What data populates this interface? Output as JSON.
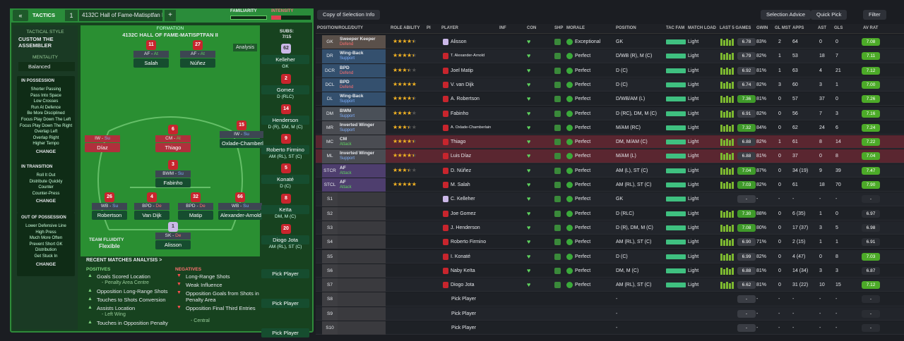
{
  "header": {
    "section": "TACTICS",
    "slot": "1",
    "tactic_name": "4132C Hall of Fame-Matisptfan II",
    "add": "+",
    "familiarity": "FAMILIARITY",
    "intensity": "INTENSITY"
  },
  "toolbar": {
    "view": "Copy of Selection Info",
    "buttons": [
      "Selection Advice",
      "Quick Pick",
      "Filter"
    ]
  },
  "sidebar": {
    "style_label": "TACTICAL STYLE",
    "style": "CUSTOM THE ASSEMBLER",
    "mentality_label": "MENTALITY",
    "mentality": "Balanced",
    "groups": [
      {
        "title": "IN POSSESSION",
        "items": [
          "Shorter Passing",
          "Pass Into Space",
          "Low Crosses",
          "Run At Defence",
          "Be More Disciplined",
          "Focus Play Down The Left",
          "Focus Play Down The Right",
          "Overlap Left",
          "Overlap Right",
          "Higher Tempo"
        ],
        "action": "CHANGE"
      },
      {
        "title": "IN TRANSITION",
        "items": [
          "Roll It Out",
          "Distribute Quickly",
          "Counter",
          "Counter-Press"
        ],
        "action": "CHANGE"
      },
      {
        "title": "OUT OF POSSESSION",
        "items": [
          "Lower Defensive Line",
          "High Press",
          "Much More Often",
          "Prevent Short GK",
          "Distribution",
          "Get Stuck In"
        ],
        "action": "CHANGE"
      }
    ]
  },
  "pitch": {
    "formation_label": "FORMATION",
    "formation": "4132C HALL OF FAME-MATISPTFAN II",
    "analysis": "Analysis",
    "subs_label": "SUBS:",
    "subs_count": "7/15",
    "fluidity_label": "TEAM FLUIDITY",
    "fluidity": "Flexible",
    "players": [
      {
        "number": "11",
        "role": "AF",
        "duty": "At",
        "name": "Salah"
      },
      {
        "number": "27",
        "role": "AF",
        "duty": "At",
        "name": "Núñez"
      },
      {
        "role": "IW",
        "duty": "Su",
        "name": "Díaz",
        "highlight": "#b0303c"
      },
      {
        "number": "6",
        "role": "CM",
        "duty": "At",
        "name": "Thiago",
        "highlight": "#b0303c"
      },
      {
        "number": "15",
        "role": "IW",
        "duty": "Su",
        "name": "Oxlade-Chamberlain"
      },
      {
        "number": "3",
        "role": "BWM",
        "duty": "Su",
        "name": "Fabinho"
      },
      {
        "number": "26",
        "role": "WB",
        "duty": "Su",
        "name": "Robertson"
      },
      {
        "number": "4",
        "role": "BPD",
        "duty": "De",
        "name": "Van Dijk"
      },
      {
        "number": "32",
        "role": "BPD",
        "duty": "De",
        "name": "Matip"
      },
      {
        "number": "66",
        "role": "WB",
        "duty": "Su",
        "name": "Alexander-Arnold"
      },
      {
        "number": "1",
        "role": "SK",
        "duty": "De",
        "name": "Alisson",
        "shirt": "#cbb8e8"
      }
    ],
    "subs": [
      {
        "number": "62",
        "name": "Kelleher",
        "position": "GK",
        "shirt": "#cbb8e8"
      },
      {
        "number": "2",
        "name": "Gomez",
        "position": "D (RLC)"
      },
      {
        "number": "14",
        "name": "Henderson",
        "position": "D (R), DM, M (C)"
      },
      {
        "number": "9",
        "name": "Roberto Firmino",
        "position": "AM (RL), ST (C)"
      },
      {
        "number": "5",
        "name": "Konaté",
        "position": "D (C)"
      },
      {
        "number": "8",
        "name": "Keïta",
        "position": "DM, M (C)"
      },
      {
        "number": "20",
        "name": "Diogo Jota",
        "position": "AM (RL), ST (C)"
      },
      {
        "name": "Pick Player"
      },
      {
        "name": "Pick Player"
      },
      {
        "name": "Pick Player"
      }
    ]
  },
  "analysis": {
    "title": "RECENT MATCHES ANALYSIS >",
    "positives_label": "POSITIVES",
    "positives": [
      {
        "text": "Goals Scored Location",
        "detail": "- Penalty Area Centre"
      },
      {
        "text": "Opposition Long-Range Shots"
      },
      {
        "text": "Touches to Shots Conversion"
      },
      {
        "text": "Assists Location",
        "detail": "- Left Wing"
      },
      {
        "text": "Touches in Opposition Penalty"
      }
    ],
    "negatives_label": "NEGATIVES",
    "negatives": [
      {
        "text": "Long-Range Shots"
      },
      {
        "text": "Weak Influence"
      },
      {
        "text": "Opposition Goals from Shots in Penalty Area"
      },
      {
        "text": "Opposition Final Third Entries",
        "detail": "- Central"
      }
    ]
  },
  "table": {
    "columns": [
      "POSITION/ROLE/DUTY",
      "ROLE ABILITY",
      "PI",
      "PLAYER",
      "INF",
      "CON",
      "SHP",
      "MORALE",
      "POSITION",
      "TAC FAM",
      "MATCH LOAD",
      "LAST 5 GAMES",
      "GWIN",
      "GL MST",
      "APPS",
      "AST",
      "GLS",
      "AV RAT"
    ],
    "rows": [
      {
        "pos": "GK",
        "role": "Sweeper Keeper",
        "duty": "Defend",
        "role_ability": 4,
        "role_color": "#5a504a",
        "player": "Alisson",
        "morale": "Exceptional",
        "position": "GK",
        "match_load": "Light",
        "form": "6.78",
        "gwin": "83%",
        "gl_mst": "2",
        "apps": "64",
        "ast": "0",
        "gls": "0",
        "av_rat": "7.08"
      },
      {
        "pos": "DR",
        "role": "Wing-Back",
        "duty": "Support",
        "role_ability": 4,
        "role_color": "#34506e",
        "player": "T. Alexander-Arnold",
        "morale": "Perfect",
        "position": "D/WB (R), M (C)",
        "match_load": "Light",
        "form": "6.79",
        "gwin": "82%",
        "gl_mst": "1",
        "apps": "53",
        "ast": "18",
        "gls": "7",
        "av_rat": "7.11"
      },
      {
        "pos": "DCR",
        "role": "BPD",
        "duty": "Defend",
        "role_ability": 3,
        "role_color": "#34506e",
        "player": "Joel Matip",
        "morale": "Perfect",
        "position": "D (C)",
        "match_load": "Light",
        "form": "6.92",
        "gwin": "81%",
        "gl_mst": "1",
        "apps": "63",
        "ast": "4",
        "gls": "21",
        "av_rat": "7.12"
      },
      {
        "pos": "DCL",
        "role": "BPD",
        "duty": "Defend",
        "role_ability": 4.5,
        "role_color": "#34506e",
        "player": "V. van Dijk",
        "morale": "Perfect",
        "position": "D (C)",
        "match_load": "Light",
        "form": "6.74",
        "gwin": "82%",
        "gl_mst": "3",
        "apps": "60",
        "ast": "3",
        "gls": "1",
        "av_rat": "7.00"
      },
      {
        "pos": "DL",
        "role": "Wing-Back",
        "duty": "Support",
        "role_ability": 4,
        "role_color": "#34506e",
        "player": "A. Robertson",
        "morale": "Perfect",
        "position": "D/WB/AM (L)",
        "match_load": "Light",
        "form": "7.36",
        "gwin": "81%",
        "gl_mst": "0",
        "apps": "57",
        "ast": "37",
        "gls": "0",
        "av_rat": "7.26"
      },
      {
        "pos": "DM",
        "role": "BWM",
        "duty": "Support",
        "role_ability": 3.5,
        "role_color": "#4a5058",
        "player": "Fabinho",
        "morale": "Perfect",
        "position": "D (RC), DM, M (C)",
        "match_load": "Light",
        "form": "6.91",
        "gwin": "82%",
        "gl_mst": "0",
        "apps": "56",
        "ast": "7",
        "gls": "3",
        "av_rat": "7.16"
      },
      {
        "pos": "MR",
        "role": "Inverted Winger",
        "duty": "Support",
        "role_ability": 3,
        "role_color": "#4a4c52",
        "player": "A. Oxlade-Chamberlain",
        "morale": "Perfect",
        "position": "M/AM (RC)",
        "match_load": "Light",
        "form": "7.32",
        "gwin": "84%",
        "gl_mst": "0",
        "apps": "62",
        "ast": "24",
        "gls": "6",
        "av_rat": "7.24"
      },
      {
        "pos": "MC",
        "role": "CM",
        "duty": "Attack",
        "role_ability": 4,
        "role_color": "#4a4c52",
        "highlight": "#5a2630",
        "player": "Thiago",
        "morale": "Perfect",
        "position": "DM, M/AM (C)",
        "match_load": "Light",
        "form": "6.88",
        "gwin": "82%",
        "gl_mst": "1",
        "apps": "61",
        "ast": "8",
        "gls": "14",
        "av_rat": "7.22"
      },
      {
        "pos": "ML",
        "role": "Inverted Winger",
        "duty": "Support",
        "role_ability": 4,
        "role_color": "#4a4c52",
        "highlight": "#5a2630",
        "player": "Luis Díaz",
        "morale": "Perfect",
        "position": "M/AM (L)",
        "match_load": "Light",
        "form": "6.88",
        "gwin": "81%",
        "gl_mst": "0",
        "apps": "37",
        "ast": "0",
        "gls": "8",
        "av_rat": "7.04"
      },
      {
        "pos": "STCR",
        "role": "AF",
        "duty": "Attack",
        "role_ability": 3,
        "role_color": "#4e3e6e",
        "player": "D. Núñez",
        "morale": "Perfect",
        "position": "AM (L), ST (C)",
        "match_load": "Light",
        "form": "7.04",
        "gwin": "87%",
        "gl_mst": "0",
        "apps": "34 (19)",
        "ast": "9",
        "gls": "39",
        "av_rat": "7.47"
      },
      {
        "pos": "STCL",
        "role": "AF",
        "duty": "Attack",
        "role_ability": 5,
        "role_color": "#4e3e6e",
        "player": "M. Salah",
        "morale": "Perfect",
        "position": "AM (RL), ST (C)",
        "match_load": "Light",
        "form": "7.03",
        "gwin": "82%",
        "gl_mst": "0",
        "apps": "61",
        "ast": "18",
        "gls": "70",
        "av_rat": "7.90"
      },
      {
        "pos": "S1",
        "player": "C. Kelleher",
        "morale": "Perfect",
        "position": "GK",
        "match_load": "Light",
        "form": "-",
        "gwin": "-",
        "gl_mst": "-",
        "apps": "-",
        "ast": "-",
        "gls": "-",
        "av_rat": "-"
      },
      {
        "pos": "S2",
        "player": "Joe Gomez",
        "morale": "Perfect",
        "position": "D (RLC)",
        "match_load": "Light",
        "form": "7.30",
        "gwin": "88%",
        "gl_mst": "0",
        "apps": "6 (35)",
        "ast": "1",
        "gls": "0",
        "av_rat": "6.97"
      },
      {
        "pos": "S3",
        "player": "J. Henderson",
        "morale": "Perfect",
        "position": "D (R), DM, M (C)",
        "match_load": "Light",
        "form": "7.08",
        "gwin": "80%",
        "gl_mst": "0",
        "apps": "17 (37)",
        "ast": "3",
        "gls": "5",
        "av_rat": "6.98"
      },
      {
        "pos": "S4",
        "player": "Roberto Firmino",
        "morale": "Perfect",
        "position": "AM (RL), ST (C)",
        "match_load": "Light",
        "form": "6.90",
        "gwin": "71%",
        "gl_mst": "0",
        "apps": "2 (15)",
        "ast": "1",
        "gls": "1",
        "av_rat": "6.91"
      },
      {
        "pos": "S5",
        "player": "I. Konaté",
        "morale": "Perfect",
        "position": "D (C)",
        "match_load": "Light",
        "form": "6.99",
        "gwin": "82%",
        "gl_mst": "0",
        "apps": "4 (47)",
        "ast": "0",
        "gls": "8",
        "av_rat": "7.03"
      },
      {
        "pos": "S6",
        "player": "Naby Keïta",
        "morale": "Perfect",
        "position": "DM, M (C)",
        "match_load": "Light",
        "form": "6.88",
        "gwin": "81%",
        "gl_mst": "0",
        "apps": "14 (34)",
        "ast": "3",
        "gls": "3",
        "av_rat": "6.87"
      },
      {
        "pos": "S7",
        "player": "Diogo Jota",
        "morale": "Perfect",
        "position": "AM (RL), ST (C)",
        "match_load": "Light",
        "form": "6.62",
        "gwin": "81%",
        "gl_mst": "0",
        "apps": "31 (22)",
        "ast": "10",
        "gls": "15",
        "av_rat": "7.12"
      },
      {
        "pos": "S8",
        "player": "Pick Player",
        "position": "-",
        "form": "-",
        "gwin": "-",
        "gl_mst": "-",
        "apps": "-",
        "ast": "-",
        "gls": "-",
        "av_rat": "-"
      },
      {
        "pos": "S9",
        "player": "Pick Player",
        "position": "-",
        "form": "-",
        "gwin": "-",
        "gl_mst": "-",
        "apps": "-",
        "ast": "-",
        "gls": "-",
        "av_rat": "-"
      },
      {
        "pos": "S10",
        "player": "Pick Player",
        "position": "-",
        "form": "-",
        "gwin": "-",
        "gl_mst": "-",
        "apps": "-",
        "ast": "-",
        "gls": "-",
        "av_rat": "-"
      }
    ]
  }
}
